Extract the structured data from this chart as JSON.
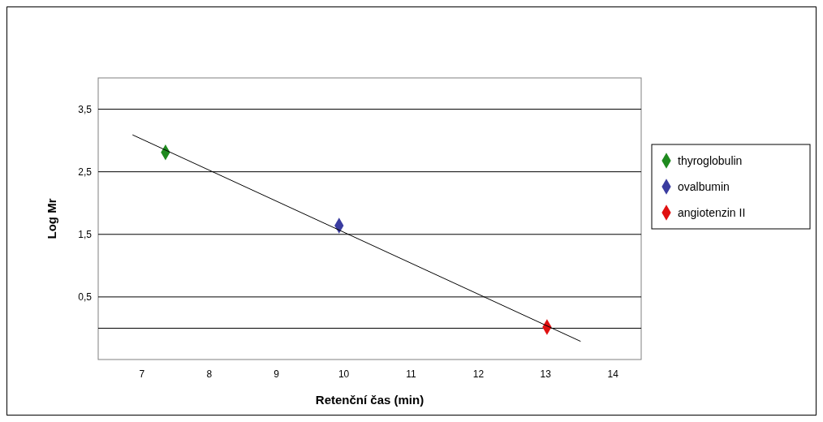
{
  "chart_data": {
    "type": "scatter",
    "xlabel": "Retenční čas (min)",
    "ylabel": "Log Mr",
    "xlim": [
      6.35,
      14.42
    ],
    "xticks": [
      7,
      8,
      9,
      10,
      11,
      12,
      13,
      14
    ],
    "ylim": [
      -0.5,
      4
    ],
    "yticks": [
      {
        "value": 0,
        "label": null
      },
      {
        "value": 0.5,
        "label": "0,5"
      },
      {
        "value": 1.5,
        "label": "1,5"
      },
      {
        "value": 2.5,
        "label": "2,5"
      },
      {
        "value": 3.5,
        "label": "3,5"
      }
    ],
    "grid": "y",
    "legend": "right",
    "marker": "diamond",
    "series": [
      {
        "name": "thyroglobulin",
        "color": "#1e8a1e",
        "x": [
          7.35
        ],
        "values": [
          2.81
        ]
      },
      {
        "name": "ovalbumin",
        "color": "#3a3ca0",
        "x": [
          9.93
        ],
        "values": [
          1.64
        ]
      },
      {
        "name": "angiotenzin II",
        "color": "#e01010",
        "x": [
          13.02
        ],
        "values": [
          0.02
        ]
      },
      {
        "type": "line",
        "color": "#000000",
        "x": [
          6.86,
          13.52
        ],
        "values": [
          3.09,
          -0.21
        ],
        "marker": "none"
      }
    ]
  }
}
